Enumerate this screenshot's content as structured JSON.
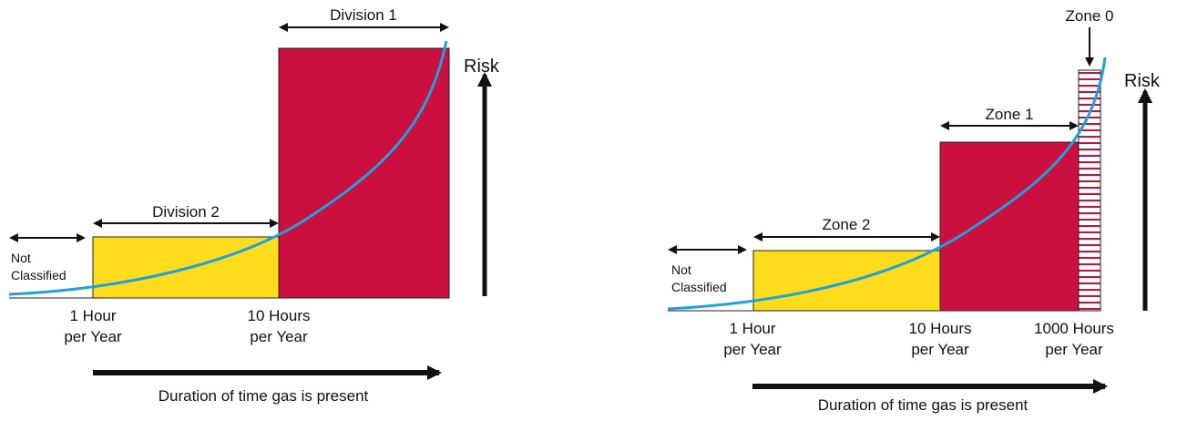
{
  "colors": {
    "division2": "#ffdd1c",
    "division1": "#cb0f3e",
    "zone2": "#ffdd1c",
    "zone1": "#cb0f3e",
    "zone0_stripe": "#cb0f3e",
    "curve": "#1ea1dc",
    "arrow": "#111111"
  },
  "left": {
    "division1_label": "Division 1",
    "division2_label": "Division 2",
    "not_classified_line1": "Not",
    "not_classified_line2": "Classified",
    "risk_label": "Risk",
    "tick1_line1": "1 Hour",
    "tick1_line2": "per Year",
    "tick2_line1": "10 Hours",
    "tick2_line2": "per Year",
    "axis_label": "Duration of time gas is present"
  },
  "right": {
    "zone0_label": "Zone 0",
    "zone1_label": "Zone 1",
    "zone2_label": "Zone 2",
    "not_classified_line1": "Not",
    "not_classified_line2": "Classified",
    "risk_label": "Risk",
    "tick1_line1": "1 Hour",
    "tick1_line2": "per Year",
    "tick2_line1": "10 Hours",
    "tick2_line2": "per Year",
    "tick3_line1": "1000 Hours",
    "tick3_line2": "per Year",
    "axis_label": "Duration of time gas is present"
  }
}
